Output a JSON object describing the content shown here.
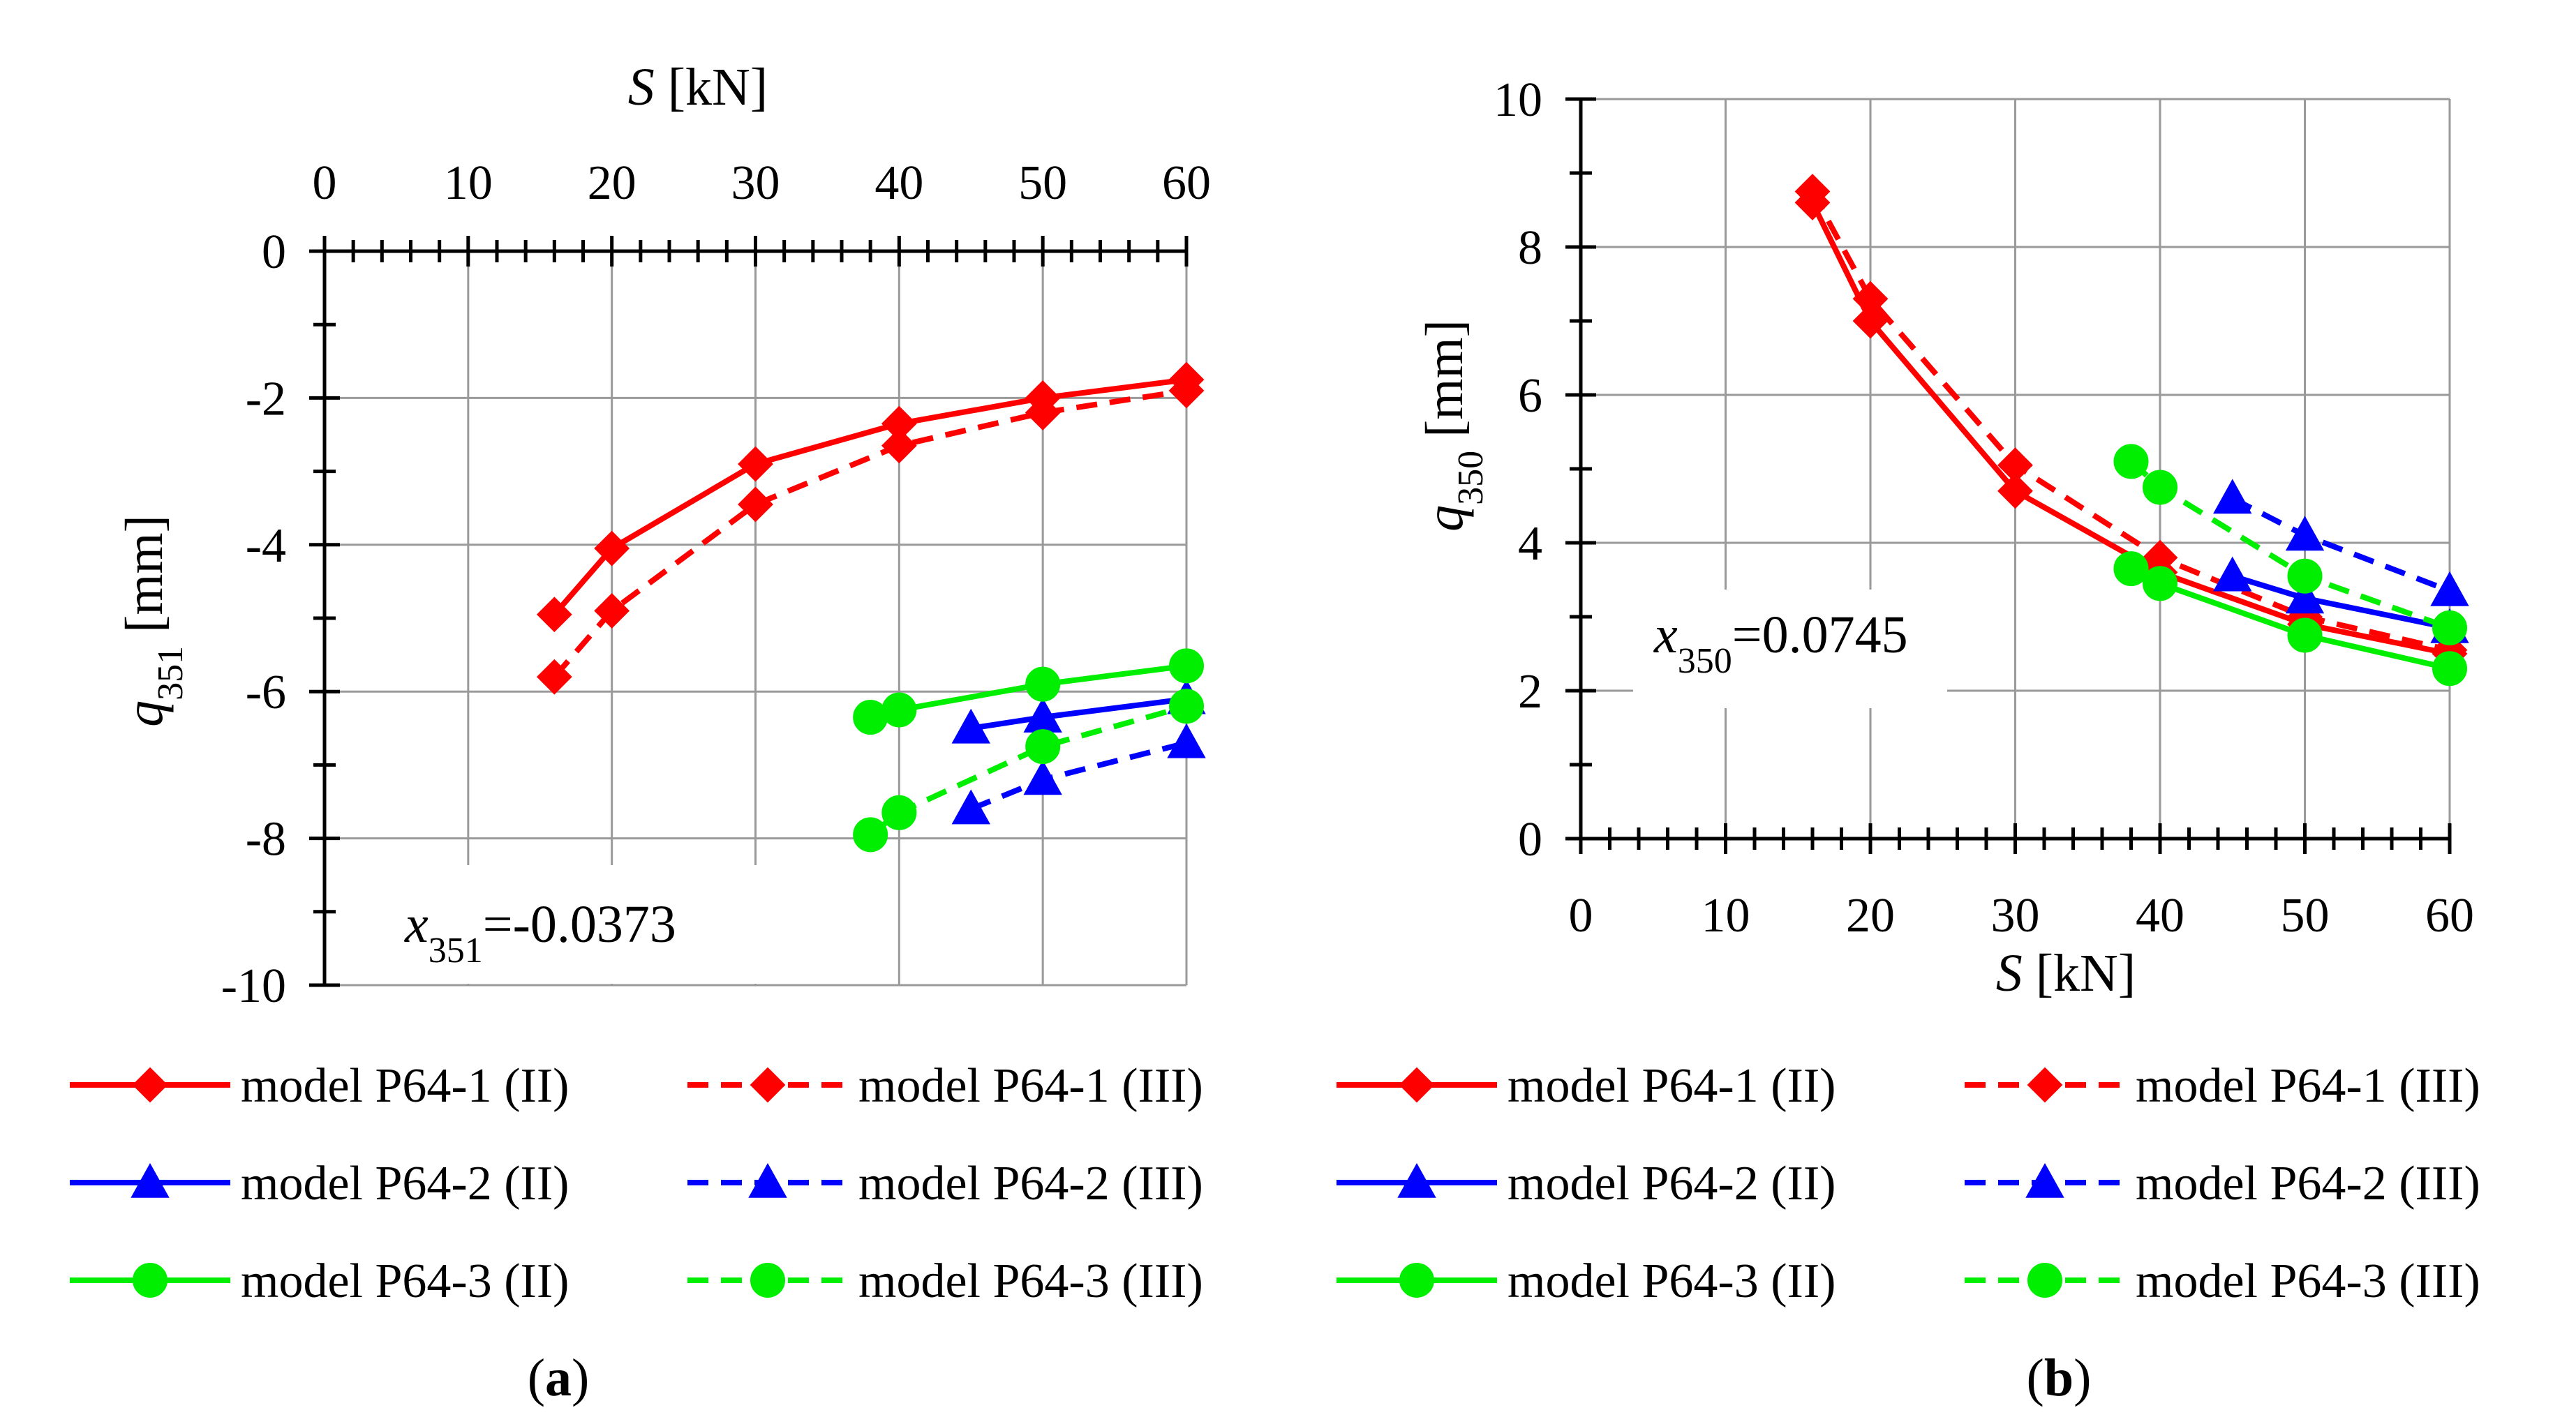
{
  "chart_data": [
    {
      "type": "line",
      "panel": "a",
      "caption_letter": "a",
      "caption_open": "(",
      "caption_close": ")",
      "xlabel_italic": "S",
      "xlabel_unit": " [kN]",
      "ylabel_italic": "q",
      "ylabel_sub": "351",
      "ylabel_unit": " [mm]",
      "x_axis_position": "top",
      "xlim": [
        0,
        60
      ],
      "ylim": [
        -10,
        0
      ],
      "xticks": [
        0,
        10,
        20,
        30,
        40,
        50,
        60
      ],
      "yticks": [
        0,
        -2,
        -4,
        -6,
        -8,
        -10
      ],
      "ytick_labels": [
        "0",
        "-2",
        "-4",
        "-6",
        "-8",
        "-10"
      ],
      "grid": true,
      "annotation": {
        "var": "x",
        "sub": "351",
        "value": "=-0.0373"
      },
      "series": [
        {
          "name": "model P64-1 (II)",
          "color": "#ff0000",
          "dashed": false,
          "marker": "diamond",
          "x": [
            16,
            20,
            30,
            40,
            50,
            60
          ],
          "y": [
            -4.95,
            -4.05,
            -2.9,
            -2.35,
            -2.0,
            -1.75
          ]
        },
        {
          "name": "model P64-1 (III)",
          "color": "#ff0000",
          "dashed": true,
          "marker": "diamond",
          "x": [
            16,
            20,
            30,
            40,
            50,
            60
          ],
          "y": [
            -5.8,
            -4.9,
            -3.45,
            -2.65,
            -2.2,
            -1.9
          ]
        },
        {
          "name": "model P64-2 (II)",
          "color": "#0000ff",
          "dashed": false,
          "marker": "triangle",
          "x": [
            45,
            50,
            60
          ],
          "y": [
            -6.5,
            -6.35,
            -6.1
          ]
        },
        {
          "name": "model P64-2 (III)",
          "color": "#0000ff",
          "dashed": true,
          "marker": "triangle",
          "x": [
            45,
            50,
            60
          ],
          "y": [
            -7.6,
            -7.2,
            -6.7
          ]
        },
        {
          "name": "model P64-3 (II)",
          "color": "#00ee00",
          "dashed": false,
          "marker": "circle",
          "x": [
            38,
            40,
            50,
            60
          ],
          "y": [
            -6.35,
            -6.25,
            -5.9,
            -5.65
          ]
        },
        {
          "name": "model P64-3 (III)",
          "color": "#00ee00",
          "dashed": true,
          "marker": "circle",
          "x": [
            38,
            40,
            50,
            60
          ],
          "y": [
            -7.95,
            -7.65,
            -6.75,
            -6.2
          ]
        }
      ]
    },
    {
      "type": "line",
      "panel": "b",
      "caption_letter": "b",
      "caption_open": "(",
      "caption_close": ")",
      "xlabel_italic": "S",
      "xlabel_unit": " [kN]",
      "ylabel_italic": "q",
      "ylabel_sub": "350",
      "ylabel_unit": " [mm]",
      "x_axis_position": "bottom",
      "xlim": [
        0,
        60
      ],
      "ylim": [
        0,
        10
      ],
      "xticks": [
        0,
        10,
        20,
        30,
        40,
        50,
        60
      ],
      "yticks": [
        0,
        2,
        4,
        6,
        8,
        10
      ],
      "ytick_labels": [
        "0",
        "2",
        "4",
        "6",
        "8",
        "10"
      ],
      "grid": true,
      "annotation": {
        "var": "x",
        "sub": "350",
        "value": "=0.0745"
      },
      "series": [
        {
          "name": "model P64-1 (II)",
          "color": "#ff0000",
          "dashed": false,
          "marker": "diamond",
          "x": [
            16,
            20,
            30,
            40,
            50,
            60
          ],
          "y": [
            8.6,
            7.0,
            4.7,
            3.6,
            2.9,
            2.5
          ]
        },
        {
          "name": "model P64-1 (III)",
          "color": "#ff0000",
          "dashed": true,
          "marker": "diamond",
          "x": [
            16,
            20,
            30,
            40,
            50,
            60
          ],
          "y": [
            8.75,
            7.3,
            5.05,
            3.8,
            3.0,
            2.55
          ]
        },
        {
          "name": "model P64-2 (II)",
          "color": "#0000ff",
          "dashed": false,
          "marker": "triangle",
          "x": [
            45,
            50,
            60
          ],
          "y": [
            3.55,
            3.25,
            2.85
          ]
        },
        {
          "name": "model P64-2 (III)",
          "color": "#0000ff",
          "dashed": true,
          "marker": "triangle",
          "x": [
            45,
            50,
            60
          ],
          "y": [
            4.6,
            4.1,
            3.35
          ]
        },
        {
          "name": "model P64-3 (II)",
          "color": "#00ee00",
          "dashed": false,
          "marker": "circle",
          "x": [
            38,
            40,
            50,
            60
          ],
          "y": [
            3.65,
            3.45,
            2.75,
            2.3
          ]
        },
        {
          "name": "model P64-3 (III)",
          "color": "#00ee00",
          "dashed": true,
          "marker": "circle",
          "x": [
            38,
            40,
            50,
            60
          ],
          "y": [
            5.1,
            4.75,
            3.55,
            2.85
          ]
        }
      ]
    }
  ]
}
